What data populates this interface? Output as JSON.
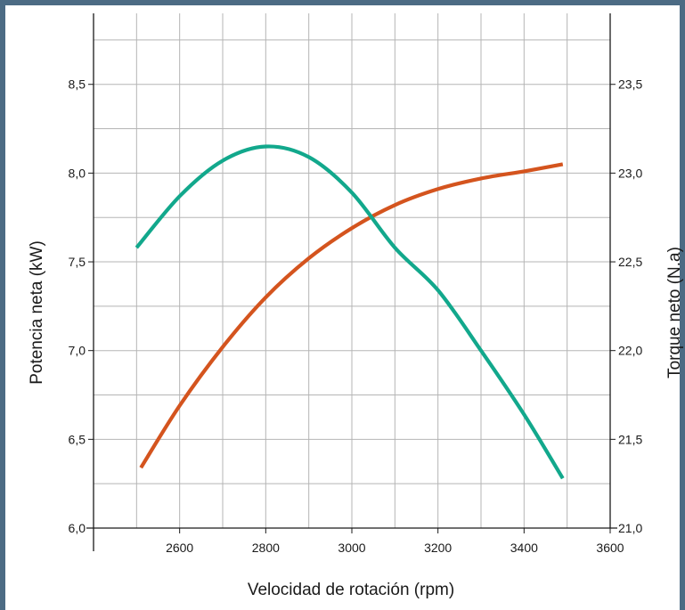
{
  "chart_data": {
    "type": "line",
    "title": "",
    "xlabel": "Velocidad de rotación (rpm)",
    "ylabel_left": "Potencia neta (kW)",
    "ylabel_right": "Torque neto (N.a)",
    "xlim": [
      2400,
      3600
    ],
    "ylim_left": [
      6.0,
      8.9
    ],
    "ylim_right": [
      21.0,
      23.9
    ],
    "x_ticks": [
      2600,
      2800,
      3000,
      3200,
      3400,
      3600
    ],
    "x_tick_labels": [
      "2600",
      "2800",
      "3000",
      "3200",
      "3400",
      "3600"
    ],
    "y_left_ticks": [
      6.0,
      6.5,
      7.0,
      7.5,
      8.0,
      8.5
    ],
    "y_left_tick_labels": [
      "6,0",
      "6,5",
      "7,0",
      "7,5",
      "8,0",
      "8,5"
    ],
    "y_right_ticks": [
      21.0,
      21.5,
      22.0,
      22.5,
      23.0,
      23.5
    ],
    "y_right_tick_labels": [
      "21,0",
      "21,5",
      "22,0",
      "22,5",
      "23,0",
      "23,5"
    ],
    "grid": true,
    "series": [
      {
        "axis": "left",
        "color": "#d4541e",
        "x": [
          2510,
          2600,
          2700,
          2800,
          2900,
          3000,
          3100,
          3200,
          3300,
          3400,
          3490
        ],
        "values": [
          6.34,
          6.69,
          7.02,
          7.3,
          7.52,
          7.69,
          7.82,
          7.91,
          7.97,
          8.01,
          8.05
        ]
      },
      {
        "axis": "right",
        "color": "#12a88c",
        "x": [
          2500,
          2600,
          2700,
          2800,
          2900,
          3000,
          3100,
          3200,
          3300,
          3400,
          3490
        ],
        "values": [
          22.58,
          22.87,
          23.07,
          23.15,
          23.09,
          22.89,
          22.58,
          22.34,
          22.0,
          21.64,
          21.28
        ]
      }
    ]
  }
}
